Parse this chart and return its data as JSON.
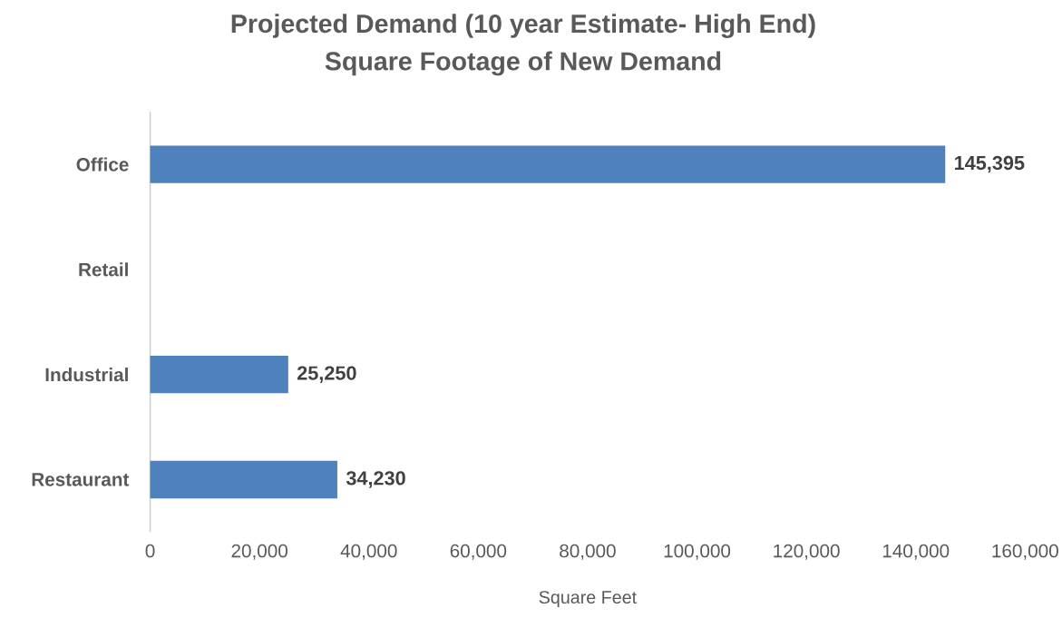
{
  "chart_data": {
    "type": "bar",
    "orientation": "horizontal",
    "title": "Projected Demand (10 year Estimate- High End)",
    "subtitle": "Square Footage of New Demand",
    "xlabel": "Square Feet",
    "categories": [
      "Office",
      "Retail",
      "Industrial",
      "Restaurant"
    ],
    "values": [
      145395,
      null,
      25250,
      34230
    ],
    "value_labels": [
      "145,395",
      null,
      "25,250",
      "34,230"
    ],
    "color": "#4f81bd",
    "xlim": [
      0,
      160000
    ],
    "xticks": [
      0,
      {
        "value": 20000,
        "label": "20,000"
      },
      {
        "value": 40000,
        "label": "40,000"
      },
      {
        "value": 60000,
        "label": "60,000"
      },
      {
        "value": 80000,
        "label": "80,000"
      },
      {
        "value": 100000,
        "label": "100,000"
      },
      {
        "value": 120000,
        "label": "120,000"
      },
      {
        "value": 140000,
        "label": "140,000"
      },
      {
        "value": 160000,
        "label": "160,000"
      }
    ]
  }
}
